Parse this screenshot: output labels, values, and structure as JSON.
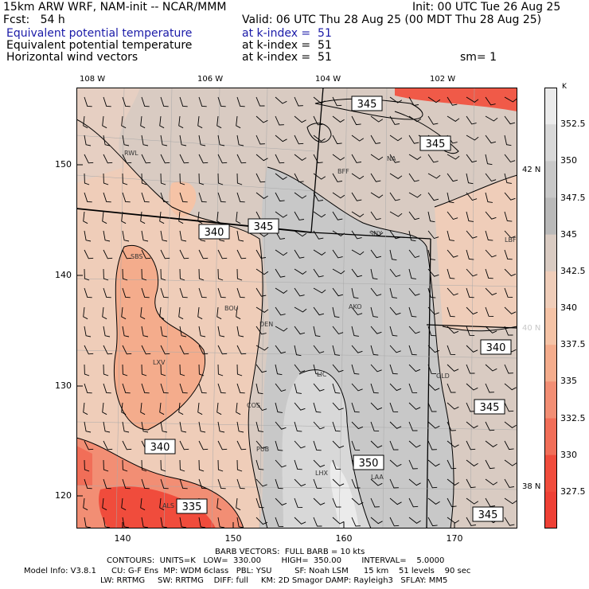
{
  "header": {
    "model_title": "15km ARW WRF, NAM-init -- NCAR/MMM",
    "init_time": "Init: 00 UTC Tue 26 Aug 25",
    "forecast": "Fcst:   54 h",
    "valid_time": "Valid: 06 UTC Thu 28 Aug 25 (00 MDT Thu 28 Aug 25)",
    "field1_name": "Equivalent potential temperature",
    "field1_level": "at k-index =  51",
    "field2_name": "Equivalent potential temperature",
    "field2_level": "at k-index =  51",
    "field3_name": "Horizontal wind vectors",
    "field3_level": "at k-index =  51",
    "smoothing": "sm= 1"
  },
  "colors": {
    "field_label": "#1a1aa8",
    "shade_high": "#c8c8c8",
    "shade_mid": "#d6cdc8",
    "shade_low": "#f2c8b0",
    "shade_lowest": "#f05a48"
  },
  "axes": {
    "lon_labels": [
      "108 W",
      "106 W",
      "104 W",
      "102 W"
    ],
    "x_ticks": [
      "140",
      "150",
      "160",
      "170"
    ],
    "y_ticks": [
      "150",
      "140",
      "130",
      "120"
    ],
    "lat_labels": [
      "42 N",
      "40 N",
      "38 N"
    ]
  },
  "colorbar": {
    "unit": "K",
    "labels": [
      "352.5",
      "350",
      "347.5",
      "345",
      "342.5",
      "340",
      "337.5",
      "335",
      "332.5",
      "330",
      "327.5"
    ],
    "colors": [
      "#ebebeb",
      "#d8d8d8",
      "#c8c8c8",
      "#b9b9b9",
      "#d9cbc2",
      "#efcdb9",
      "#f5c3a6",
      "#f4ac8c",
      "#f28e74",
      "#f16e58",
      "#f04c3c",
      "#ee4035"
    ]
  },
  "contour_labels": [
    "345",
    "345",
    "340",
    "345",
    "340",
    "345",
    "350",
    "340",
    "335",
    "345"
  ],
  "stations": [
    "RWL",
    "BFF",
    "NA",
    "SNY",
    "LBF",
    "SBS",
    "BOU",
    "DEN",
    "AKO",
    "LXV",
    "COS",
    "GLD",
    "LIC",
    "PUB",
    "LHX",
    "LAA",
    "ALS"
  ],
  "footer": {
    "barb_line": "BARB VECTORS:  FULL BARB = 10 kts",
    "contour_line": "CONTOURS:  UNITS=K   LOW=  330.00        HIGH=  350.00        INTERVAL=    5.0000",
    "model_info_1": "Model Info: V3.8.1      CU: G-F Ens  MP: WDM 6class   PBL: YSU         SF: Noah LSM      15 km    51 levels    90 sec",
    "model_info_2": "LW: RRTMG     SW: RRTMG    DIFF: full     KM: 2D Smagor DAMP: Rayleigh3   SFLAY: MM5"
  }
}
